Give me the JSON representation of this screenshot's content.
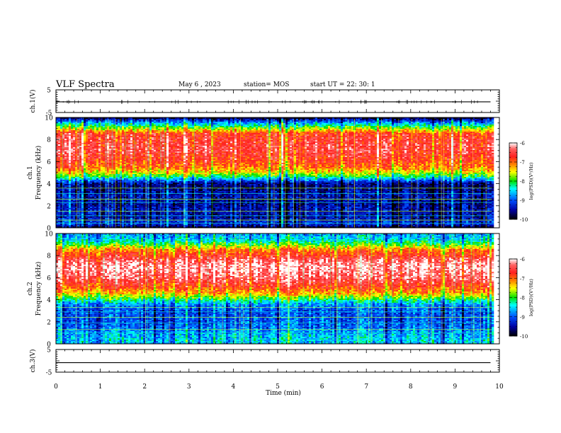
{
  "header": {
    "title": "VLF Spectra",
    "date": "May 6  , 2023",
    "station": "station= MOS",
    "start": "start  UT =   22: 30: 1"
  },
  "colors": {
    "axis": "#000000",
    "colormap": [
      "#ffffff",
      "#ff2020",
      "#ff8000",
      "#ffff00",
      "#00e000",
      "#00ffff",
      "#0050ff",
      "#0000a0",
      "#000000"
    ]
  },
  "chart_data": [
    {
      "type": "line",
      "panel": "ch1-voltage",
      "ylabel": "ch.1(V)",
      "ylim": [
        -5,
        5
      ],
      "yticks": [
        "5",
        "-5"
      ],
      "xlim": [
        0,
        10
      ],
      "series": [
        {
          "x": [
            0,
            9.8
          ],
          "values": [
            -0.3,
            -0.3
          ]
        }
      ]
    },
    {
      "type": "heatmap",
      "panel": "ch1-spectrogram",
      "ylabel_lines": [
        "ch.1",
        "Frequency  (kHz)"
      ],
      "ylim": [
        0,
        10
      ],
      "yticks": [
        "0",
        "2",
        "4",
        "6",
        "8",
        "10"
      ],
      "xlim": [
        0,
        10
      ],
      "data_extent_min": 9.83,
      "frequency_kHz": [
        0,
        0.25,
        0.5,
        1,
        1.5,
        2,
        2.5,
        3,
        3.5,
        4,
        4.3,
        4.6,
        5,
        5.5,
        6,
        7,
        8,
        8.5,
        8.9,
        9.2,
        9.5,
        9.8,
        10
      ],
      "logpsd": [
        -10,
        -9.3,
        -9.2,
        -9.5,
        -9.4,
        -9.5,
        -9.5,
        -9.4,
        -9.6,
        -9.6,
        -8.9,
        -8.2,
        -7.5,
        -7.0,
        -6.8,
        -6.5,
        -6.6,
        -6.7,
        -7.5,
        -8.1,
        -8.7,
        -9.4,
        -10
      ],
      "colorbar": {
        "label": "log(PSD)(V²/Hz)",
        "range": [
          -10,
          -6
        ],
        "ticks": [
          "-6",
          "-7",
          "-8",
          "-9",
          "-10"
        ]
      }
    },
    {
      "type": "heatmap",
      "panel": "ch2-spectrogram",
      "ylabel_lines": [
        "ch.2",
        "Frequency  (kHz)"
      ],
      "ylim": [
        0,
        10
      ],
      "yticks": [
        "0",
        "2",
        "4",
        "6",
        "8",
        "10"
      ],
      "xlim": [
        0,
        10
      ],
      "data_extent_min": 9.83,
      "frequency_kHz": [
        0,
        0.3,
        0.8,
        1.5,
        2,
        2.5,
        3,
        3.5,
        3.8,
        4.2,
        4.6,
        5,
        5.5,
        6,
        7,
        7.5,
        8,
        8.5,
        8.9,
        9.2,
        9.5,
        10
      ],
      "logpsd": [
        -8.6,
        -8.5,
        -8.6,
        -8.9,
        -9.0,
        -9.0,
        -9.0,
        -8.8,
        -8.4,
        -7.8,
        -7.2,
        -6.9,
        -6.6,
        -6.3,
        -6.1,
        -6.3,
        -6.7,
        -7.0,
        -7.7,
        -8.2,
        -8.5,
        -8.7
      ],
      "colorbar": {
        "label": "log(PSD)(V²/Hz)",
        "range": [
          -10,
          -6
        ],
        "ticks": [
          "-6",
          "-7",
          "-8",
          "-9",
          "-10"
        ]
      }
    },
    {
      "type": "line",
      "panel": "ch3-voltage",
      "ylabel": "ch.3(V)",
      "ylim": [
        -5,
        5
      ],
      "yticks": [
        "5",
        "-5"
      ],
      "xlim": [
        0,
        10
      ],
      "xlabel": "Time  (min)",
      "xticks": [
        "0",
        "1",
        "2",
        "3",
        "4",
        "5",
        "6",
        "7",
        "8",
        "9",
        "10"
      ],
      "series": [
        {
          "x": [
            0,
            9.8
          ],
          "values": [
            -0.8,
            -0.8
          ]
        }
      ]
    }
  ]
}
